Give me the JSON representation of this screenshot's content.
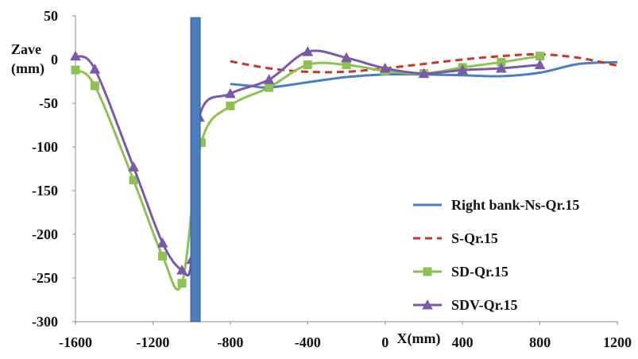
{
  "chart_data": {
    "type": "line",
    "title": "",
    "xlabel": "X(mm)",
    "ylabel": "Zave\n(mm)",
    "xlim": [
      -1600,
      1200
    ],
    "ylim": [
      -300,
      50
    ],
    "x_ticks": [
      "-1600",
      "-1200",
      "-800",
      "-400",
      "0",
      "400",
      "800",
      "1200"
    ],
    "y_ticks": [
      "50",
      "0",
      "-50",
      "-100",
      "-150",
      "-200",
      "-250",
      "-300"
    ],
    "grid": false,
    "legend_position": "right",
    "colors": {
      "Right bank-Ns-Qr.15": "#4a7ebf",
      "S-Qr.15": "#c0392b",
      "SD-Qr.15": "#8dc153",
      "SDV-Qr.15": "#7a5aa6",
      "pier": "#4a7ebf"
    },
    "series": [
      {
        "name": "Right bank-Ns-Qr.15",
        "style": "solid",
        "marker": "none",
        "x": [
          -800,
          -700,
          -600,
          -400,
          -200,
          0,
          200,
          400,
          600,
          800,
          1000,
          1200
        ],
        "y": [
          -28,
          -30,
          -32,
          -26,
          -20,
          -17,
          -17,
          -18,
          -19,
          -15,
          -5,
          -3
        ]
      },
      {
        "name": "S-Qr.15",
        "style": "dashed",
        "marker": "none",
        "x": [
          -800,
          -600,
          -400,
          -200,
          0,
          200,
          400,
          600,
          800,
          1000,
          1200
        ],
        "y": [
          -2,
          -10,
          -14,
          -14,
          -10,
          -5,
          0,
          4,
          6,
          2,
          -7
        ]
      },
      {
        "name": "SD-Qr.15",
        "style": "solid",
        "marker": "square",
        "x": [
          -1600,
          -1500,
          -1300,
          -1150,
          -1050,
          -950,
          -800,
          -600,
          -400,
          -200,
          0,
          200,
          400,
          600,
          800
        ],
        "y": [
          -12,
          -30,
          -138,
          -225,
          -256,
          -95,
          -53,
          -32,
          -6,
          -6,
          -13,
          -16,
          -9,
          -3,
          4
        ]
      },
      {
        "name": "SDV-Qr.15",
        "style": "solid",
        "marker": "triangle",
        "x": [
          -1600,
          -1500,
          -1300,
          -1150,
          -1050,
          -1000,
          -960,
          -800,
          -600,
          -400,
          -200,
          0,
          200,
          400,
          600,
          800
        ],
        "y": [
          4,
          -11,
          -123,
          -210,
          -241,
          -229,
          -66,
          -39,
          -23,
          9,
          2,
          -10,
          -16,
          -12,
          -10,
          -6
        ]
      }
    ],
    "bars": [
      {
        "name": "pier",
        "x_center": -980,
        "y_top": 48,
        "y_bottom": -300
      }
    ]
  }
}
